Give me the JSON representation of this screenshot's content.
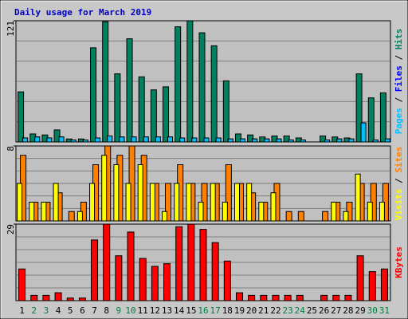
{
  "chart_data": [
    {
      "type": "bar",
      "title": "Daily usage for March 2019",
      "categories": [
        "1",
        "2",
        "3",
        "4",
        "5",
        "6",
        "7",
        "8",
        "9",
        "10",
        "11",
        "12",
        "13",
        "14",
        "15",
        "16",
        "17",
        "18",
        "19",
        "20",
        "21",
        "22",
        "23",
        "24",
        "25",
        "26",
        "27",
        "28",
        "29",
        "30",
        "31"
      ],
      "category_colors": [
        "#000000",
        "#008040",
        "#008040",
        "#000000",
        "#000000",
        "#000000",
        "#000000",
        "#000000",
        "#008040",
        "#008040",
        "#000000",
        "#000000",
        "#000000",
        "#000000",
        "#000000",
        "#008040",
        "#008040",
        "#000000",
        "#000000",
        "#000000",
        "#000000",
        "#000000",
        "#008040",
        "#008040",
        "#000000",
        "#000000",
        "#000000",
        "#000000",
        "#000000",
        "#008040",
        "#008040"
      ],
      "legend_separator": " / ",
      "ylim": [
        0,
        121
      ],
      "yticks": [
        121
      ],
      "series": [
        {
          "name": "Hits",
          "color": "#008060",
          "values": [
            50,
            8,
            7,
            12,
            3,
            3,
            94,
            120,
            68,
            103,
            65,
            52,
            55,
            115,
            121,
            109,
            96,
            61,
            8,
            7,
            5,
            6,
            6,
            4,
            0,
            6,
            5,
            4,
            68,
            44,
            49
          ]
        },
        {
          "name": "Files",
          "color": "#0000ff",
          "values": [
            4,
            5,
            4,
            5,
            2,
            2,
            4,
            6,
            5,
            5,
            5,
            5,
            5,
            4,
            4,
            4,
            4,
            3,
            3,
            3,
            3,
            3,
            2,
            2,
            0,
            2,
            3,
            3,
            19,
            2,
            3
          ]
        },
        {
          "name": "Pages",
          "color": "#00c0ff",
          "values": [
            4,
            5,
            4,
            5,
            2,
            2,
            4,
            6,
            5,
            5,
            5,
            5,
            5,
            4,
            4,
            4,
            4,
            3,
            3,
            3,
            3,
            3,
            2,
            2,
            0,
            2,
            3,
            3,
            19,
            2,
            3
          ]
        }
      ]
    },
    {
      "type": "bar",
      "legend_separator": " / ",
      "ylim": [
        0,
        8
      ],
      "yticks": [
        8
      ],
      "series": [
        {
          "name": "Sites",
          "color": "#ff8000",
          "values": [
            7,
            2,
            2,
            3,
            1,
            2,
            6,
            8,
            7,
            8,
            7,
            4,
            4,
            6,
            4,
            4,
            4,
            6,
            4,
            3,
            2,
            4,
            1,
            1,
            0,
            1,
            2,
            2,
            4,
            4,
            4
          ]
        },
        {
          "name": "Visits",
          "color": "#ffff00",
          "values": [
            4,
            2,
            2,
            4,
            0,
            1,
            4,
            7,
            6,
            4,
            6,
            4,
            1,
            4,
            4,
            2,
            4,
            2,
            4,
            4,
            2,
            3,
            0,
            0,
            0,
            0,
            2,
            1,
            5,
            2,
            2
          ]
        }
      ]
    },
    {
      "type": "bar",
      "ylim": [
        0,
        29
      ],
      "yticks": [
        29
      ],
      "series": [
        {
          "name": "KBytes",
          "color": "#ff0000",
          "values": [
            12,
            2,
            2,
            3,
            1,
            1,
            23,
            29,
            17,
            26,
            16,
            13,
            14,
            28,
            29,
            27,
            22,
            15,
            3,
            2,
            2,
            2,
            2,
            2,
            0,
            2,
            2,
            2,
            17,
            11,
            12
          ]
        }
      ]
    }
  ]
}
